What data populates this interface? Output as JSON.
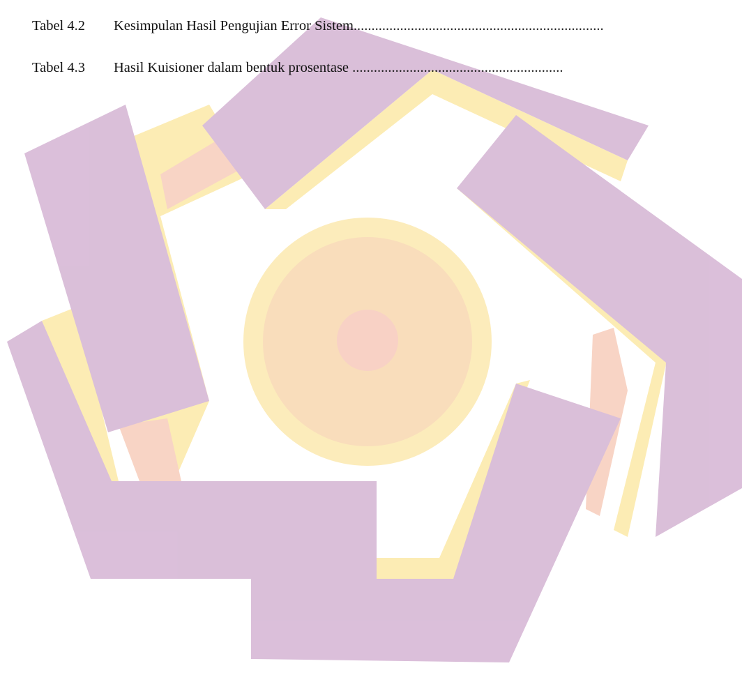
{
  "list_of_tables": [
    {
      "label": "Tabel 4.2",
      "title": "Kesimpulan Hasil Pengujian Error Sistem",
      "leader": "......................................................................"
    },
    {
      "label": "Tabel 4.3",
      "title": "Hasil Kuisioner dalam bentuk prosentase",
      "leader": " ..........................................................."
    }
  ]
}
